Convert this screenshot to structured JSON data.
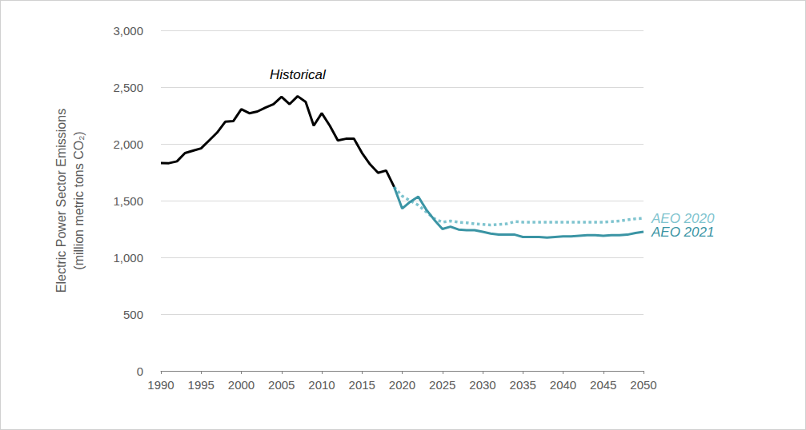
{
  "chart_data": {
    "type": "line",
    "ylabel": "Electric Power Sector Emissions\n(million metric tons CO₂)",
    "x": [
      1990,
      1991,
      1992,
      1993,
      1994,
      1995,
      1996,
      1997,
      1998,
      1999,
      2000,
      2001,
      2002,
      2003,
      2004,
      2005,
      2006,
      2007,
      2008,
      2009,
      2010,
      2011,
      2012,
      2013,
      2014,
      2015,
      2016,
      2017,
      2018,
      2019,
      2020,
      2021,
      2022,
      2023,
      2024,
      2025,
      2026,
      2027,
      2028,
      2029,
      2030,
      2031,
      2032,
      2033,
      2034,
      2035,
      2036,
      2037,
      2038,
      2039,
      2040,
      2041,
      2042,
      2043,
      2044,
      2045,
      2046,
      2047,
      2048,
      2049,
      2050
    ],
    "series": [
      {
        "name": "Historical",
        "color": "#000000",
        "line_style": "solid",
        "values": [
          1831,
          1830,
          1846,
          1919,
          1940,
          1960,
          2030,
          2100,
          2195,
          2200,
          2305,
          2270,
          2285,
          2320,
          2350,
          2415,
          2350,
          2420,
          2370,
          2160,
          2270,
          2160,
          2030,
          2045,
          2045,
          1920,
          1820,
          1745,
          1765,
          1620,
          null,
          null,
          null,
          null,
          null,
          null,
          null,
          null,
          null,
          null,
          null,
          null,
          null,
          null,
          null,
          null,
          null,
          null,
          null,
          null,
          null,
          null,
          null,
          null,
          null,
          null,
          null,
          null,
          null,
          null,
          null
        ]
      },
      {
        "name": "AEO 2020",
        "color": "#7fc4cf",
        "line_style": "dotted",
        "values": [
          null,
          null,
          null,
          null,
          null,
          null,
          null,
          null,
          null,
          null,
          null,
          null,
          null,
          null,
          null,
          null,
          null,
          null,
          null,
          null,
          null,
          null,
          null,
          null,
          null,
          null,
          null,
          null,
          null,
          1620,
          1540,
          1500,
          1460,
          1400,
          1340,
          1310,
          1320,
          1310,
          1305,
          1295,
          1290,
          1285,
          1290,
          1295,
          1315,
          1310,
          1310,
          1310,
          1310,
          1310,
          1310,
          1310,
          1310,
          1310,
          1310,
          1310,
          1315,
          1320,
          1330,
          1340,
          1345
        ]
      },
      {
        "name": "AEO 2021",
        "color": "#3a94a4",
        "line_style": "solid",
        "values": [
          null,
          null,
          null,
          null,
          null,
          null,
          null,
          null,
          null,
          null,
          null,
          null,
          null,
          null,
          null,
          null,
          null,
          null,
          null,
          null,
          null,
          null,
          null,
          null,
          null,
          null,
          null,
          null,
          null,
          1620,
          1430,
          1490,
          1535,
          1420,
          1330,
          1250,
          1270,
          1245,
          1240,
          1240,
          1225,
          1210,
          1200,
          1200,
          1200,
          1180,
          1180,
          1180,
          1175,
          1180,
          1185,
          1185,
          1190,
          1195,
          1195,
          1190,
          1195,
          1195,
          1200,
          1215,
          1225
        ]
      }
    ],
    "xlim": [
      1990,
      2050
    ],
    "xticks": [
      1990,
      1995,
      2000,
      2005,
      2010,
      2015,
      2020,
      2025,
      2030,
      2035,
      2040,
      2045,
      2050
    ],
    "ylim": [
      0,
      3000
    ],
    "yticks": [
      0,
      500,
      {
        "value": 1000,
        "label": "1,000"
      },
      {
        "value": 1500,
        "label": "1,500"
      },
      {
        "value": 2000,
        "label": "2,000"
      },
      {
        "value": 2500,
        "label": "2,500"
      },
      {
        "value": 3000,
        "label": "3,000"
      }
    ],
    "grid": true
  }
}
